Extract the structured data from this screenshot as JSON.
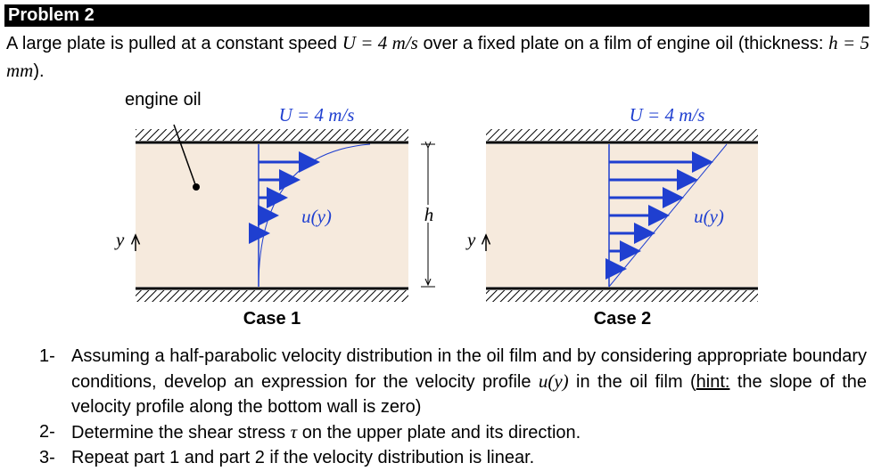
{
  "header": {
    "title": "Problem 2"
  },
  "intro": {
    "parts": [
      "A large plate is pulled at a constant speed",
      "U = 4 m/s",
      "over a fixed plate on a film of engine oil (thickness:",
      "h = 5 mm",
      ")."
    ]
  },
  "figure": {
    "oil_label": "engine oil",
    "gap_label": "h",
    "cases": [
      {
        "label": "Case 1",
        "speed": "U = 4 m/s",
        "profile": "u(y)",
        "y_axis": "y"
      },
      {
        "label": "Case 2",
        "speed": "U = 4 m/s",
        "profile": "u(y)",
        "y_axis": "y"
      }
    ]
  },
  "questions": [
    {
      "number": "1-",
      "parts": [
        "Assuming a half-parabolic velocity distribution in the oil film and by considering appropriate boundary conditions, develop an expression for the velocity profile",
        "u(y)",
        "in the oil film (",
        "hint:",
        "the slope of the velocity profile along the bottom wall is zero)"
      ]
    },
    {
      "number": "2-",
      "parts": [
        "Determine the shear stress",
        "τ",
        "on the upper plate and its direction."
      ]
    },
    {
      "number": "3-",
      "parts": [
        "Repeat part 1 and part 2 if the velocity distribution is linear."
      ]
    }
  ]
}
